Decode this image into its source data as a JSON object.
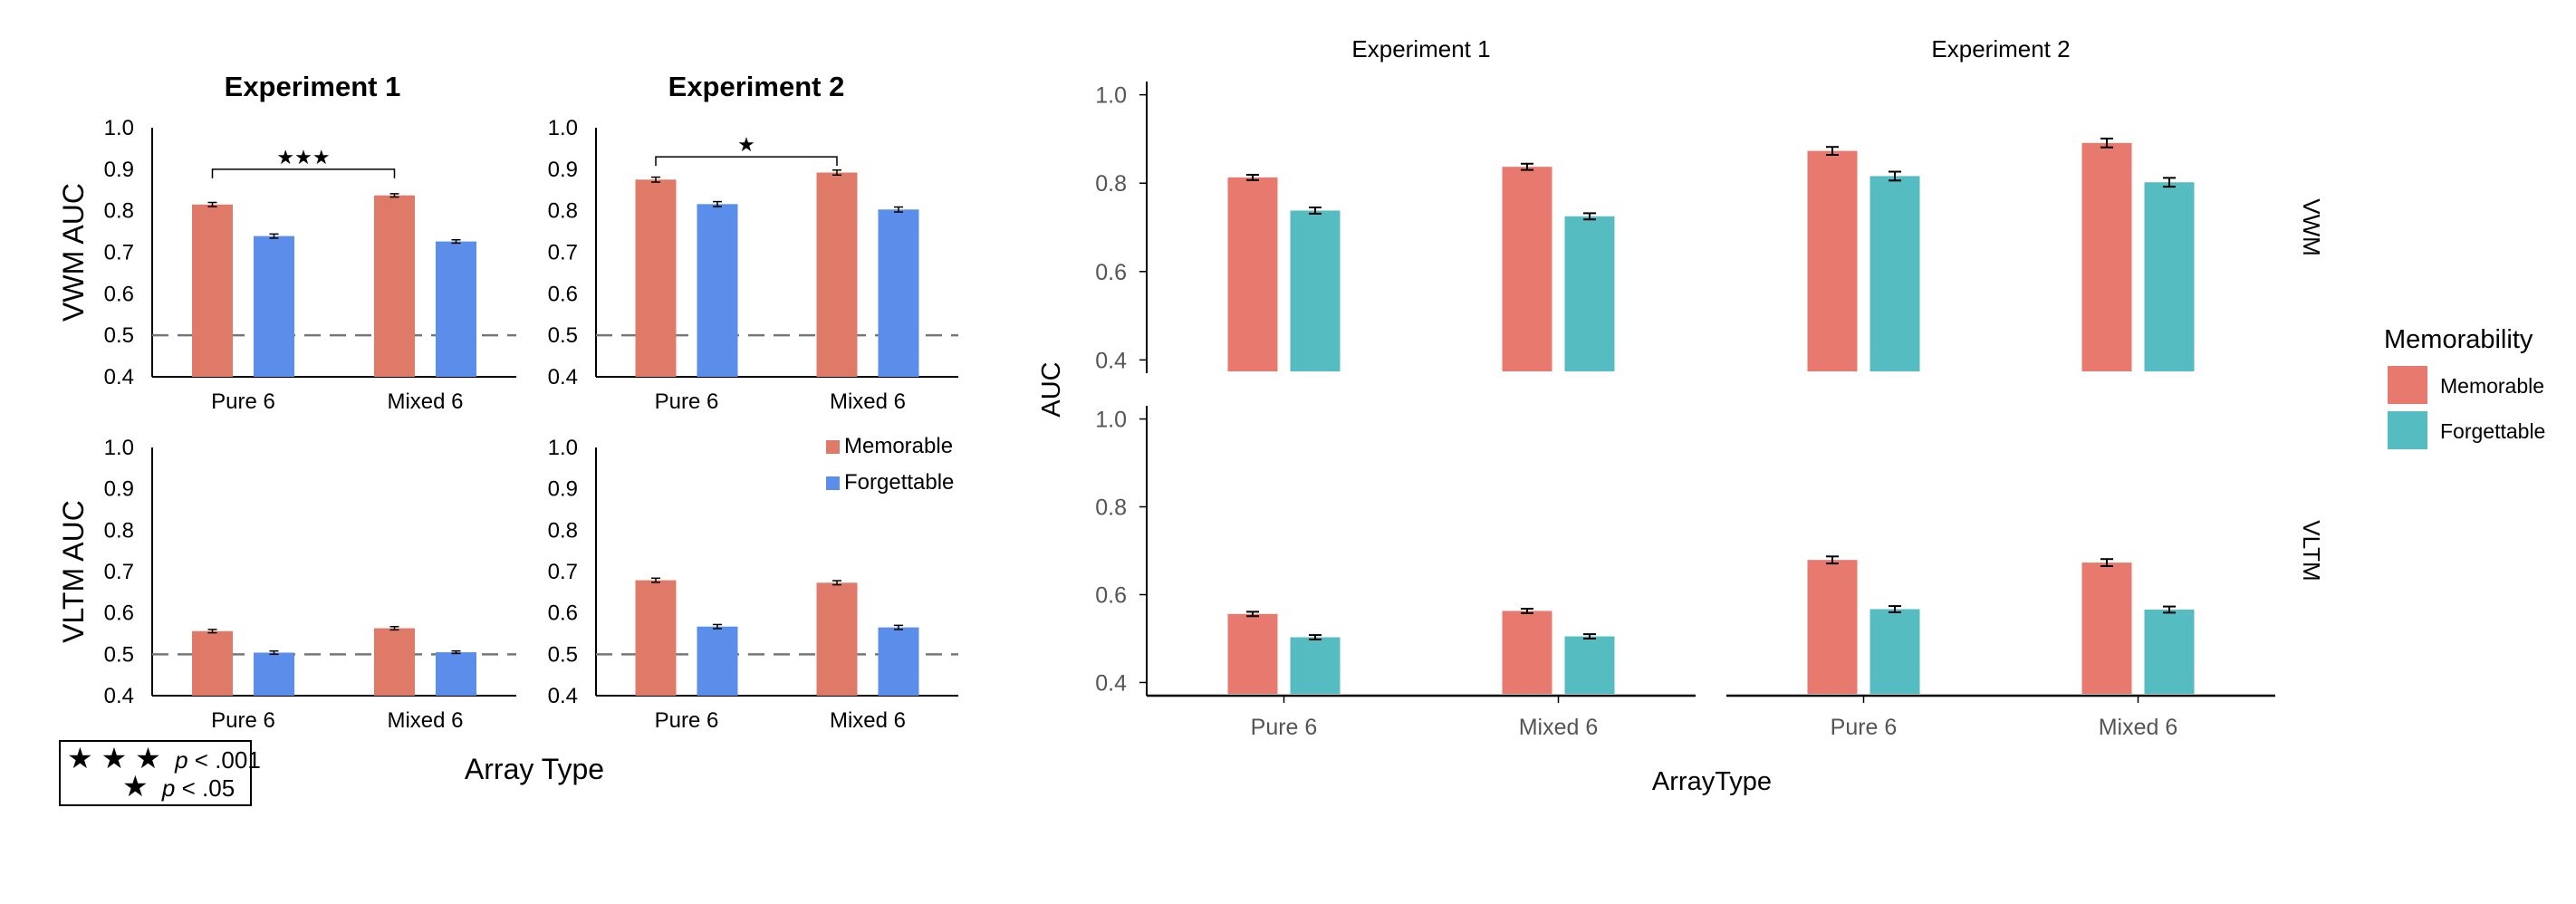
{
  "colors": {
    "memorable_left": "#e07a68",
    "forgettable_left": "#5b8eea",
    "memorable_right": "#e8796f",
    "forgettable_right": "#55bcc2",
    "axis": "#000000",
    "refline": "#777777"
  },
  "left_panel": {
    "x_title": "Array Type",
    "significance_legend": [
      {
        "stars": "★ ★ ★",
        "p_symbol": "p",
        "label": " < .001"
      },
      {
        "stars": "★",
        "p_symbol": "p",
        "label": " < .05"
      }
    ]
  },
  "right_panel": {
    "x_title": "ArrayType",
    "y_title": "AUC",
    "legend_title": "Memorability"
  },
  "chart_data": [
    {
      "type": "bar",
      "id": "left-vwm-exp1",
      "title": "Experiment 1",
      "ylabel": "VWM AUC",
      "categories": [
        "Pure 6",
        "Mixed 6"
      ],
      "series": [
        {
          "name": "Memorable",
          "values": [
            0.815,
            0.837
          ],
          "errors": [
            0.005,
            0.004
          ]
        },
        {
          "name": "Forgettable",
          "values": [
            0.739,
            0.726
          ],
          "errors": [
            0.005,
            0.004
          ]
        }
      ],
      "ylim": [
        0.4,
        1.0
      ],
      "yticks": [
        "0.4",
        "0.5",
        "0.6",
        "0.7",
        "0.8",
        "0.9",
        "1.0"
      ],
      "reference_line": 0.5,
      "significance": {
        "label": "★★★",
        "from": 0,
        "to": 1,
        "y": 0.9
      }
    },
    {
      "type": "bar",
      "id": "left-vwm-exp2",
      "title": "Experiment 2",
      "ylabel": "",
      "categories": [
        "Pure 6",
        "Mixed 6"
      ],
      "series": [
        {
          "name": "Memorable",
          "values": [
            0.875,
            0.892
          ],
          "errors": [
            0.006,
            0.006
          ]
        },
        {
          "name": "Forgettable",
          "values": [
            0.816,
            0.803
          ],
          "errors": [
            0.006,
            0.006
          ]
        }
      ],
      "ylim": [
        0.4,
        1.0
      ],
      "yticks": [
        "0.4",
        "0.5",
        "0.6",
        "0.7",
        "0.8",
        "0.9",
        "1.0"
      ],
      "reference_line": 0.5,
      "significance": {
        "label": "★",
        "from": 0,
        "to": 1,
        "y": 0.93
      }
    },
    {
      "type": "bar",
      "id": "left-vltm-exp1",
      "title": "",
      "ylabel": "VLTM AUC",
      "categories": [
        "Pure 6",
        "Mixed 6"
      ],
      "series": [
        {
          "name": "Memorable",
          "values": [
            0.556,
            0.563
          ],
          "errors": [
            0.004,
            0.004
          ]
        },
        {
          "name": "Forgettable",
          "values": [
            0.504,
            0.505
          ],
          "errors": [
            0.004,
            0.003
          ]
        }
      ],
      "ylim": [
        0.4,
        1.0
      ],
      "yticks": [
        "0.4",
        "0.5",
        "0.6",
        "0.7",
        "0.8",
        "0.9",
        "1.0"
      ],
      "reference_line": 0.5
    },
    {
      "type": "bar",
      "id": "left-vltm-exp2",
      "title": "",
      "ylabel": "",
      "categories": [
        "Pure 6",
        "Mixed 6"
      ],
      "series": [
        {
          "name": "Memorable",
          "values": [
            0.679,
            0.673
          ],
          "errors": [
            0.005,
            0.005
          ]
        },
        {
          "name": "Forgettable",
          "values": [
            0.567,
            0.565
          ],
          "errors": [
            0.005,
            0.005
          ]
        }
      ],
      "ylim": [
        0.4,
        1.0
      ],
      "yticks": [
        "0.4",
        "0.5",
        "0.6",
        "0.7",
        "0.8",
        "0.9",
        "1.0"
      ],
      "reference_line": 0.5,
      "legend": [
        "Memorable",
        "Forgettable"
      ]
    },
    {
      "type": "bar",
      "id": "right-vwm-exp1",
      "title": "Experiment 1",
      "categories": [
        "Pure 6",
        "Mixed 6"
      ],
      "series": [
        {
          "name": "Memorable",
          "values": [
            0.813,
            0.837
          ],
          "errors": [
            0.006,
            0.007
          ]
        },
        {
          "name": "Forgettable",
          "values": [
            0.738,
            0.725
          ],
          "errors": [
            0.007,
            0.007
          ]
        }
      ],
      "ylim": [
        0.37,
        1.03
      ],
      "yticks": [
        "0.4",
        "0.6",
        "0.8",
        "1.0"
      ]
    },
    {
      "type": "bar",
      "id": "right-vwm-exp2",
      "title": "Experiment 2",
      "facet_label": "VWM",
      "categories": [
        "Pure 6",
        "Mixed 6"
      ],
      "series": [
        {
          "name": "Memorable",
          "values": [
            0.873,
            0.891
          ],
          "errors": [
            0.009,
            0.01
          ]
        },
        {
          "name": "Forgettable",
          "values": [
            0.816,
            0.802
          ],
          "errors": [
            0.01,
            0.01
          ]
        }
      ],
      "ylim": [
        0.37,
        1.03
      ]
    },
    {
      "type": "bar",
      "id": "right-vltm-exp1",
      "categories": [
        "Pure 6",
        "Mixed 6"
      ],
      "series": [
        {
          "name": "Memorable",
          "values": [
            0.556,
            0.563
          ],
          "errors": [
            0.005,
            0.005
          ]
        },
        {
          "name": "Forgettable",
          "values": [
            0.503,
            0.505
          ],
          "errors": [
            0.005,
            0.005
          ]
        }
      ],
      "ylim": [
        0.37,
        1.03
      ],
      "yticks": [
        "0.4",
        "0.6",
        "0.8",
        "1.0"
      ]
    },
    {
      "type": "bar",
      "id": "right-vltm-exp2",
      "facet_label": "VLTM",
      "categories": [
        "Pure 6",
        "Mixed 6"
      ],
      "series": [
        {
          "name": "Memorable",
          "values": [
            0.679,
            0.673
          ],
          "errors": [
            0.008,
            0.008
          ]
        },
        {
          "name": "Forgettable",
          "values": [
            0.567,
            0.566
          ],
          "errors": [
            0.007,
            0.007
          ]
        }
      ],
      "ylim": [
        0.37,
        1.03
      ],
      "legend": [
        "Memorable",
        "Forgettable"
      ]
    }
  ]
}
